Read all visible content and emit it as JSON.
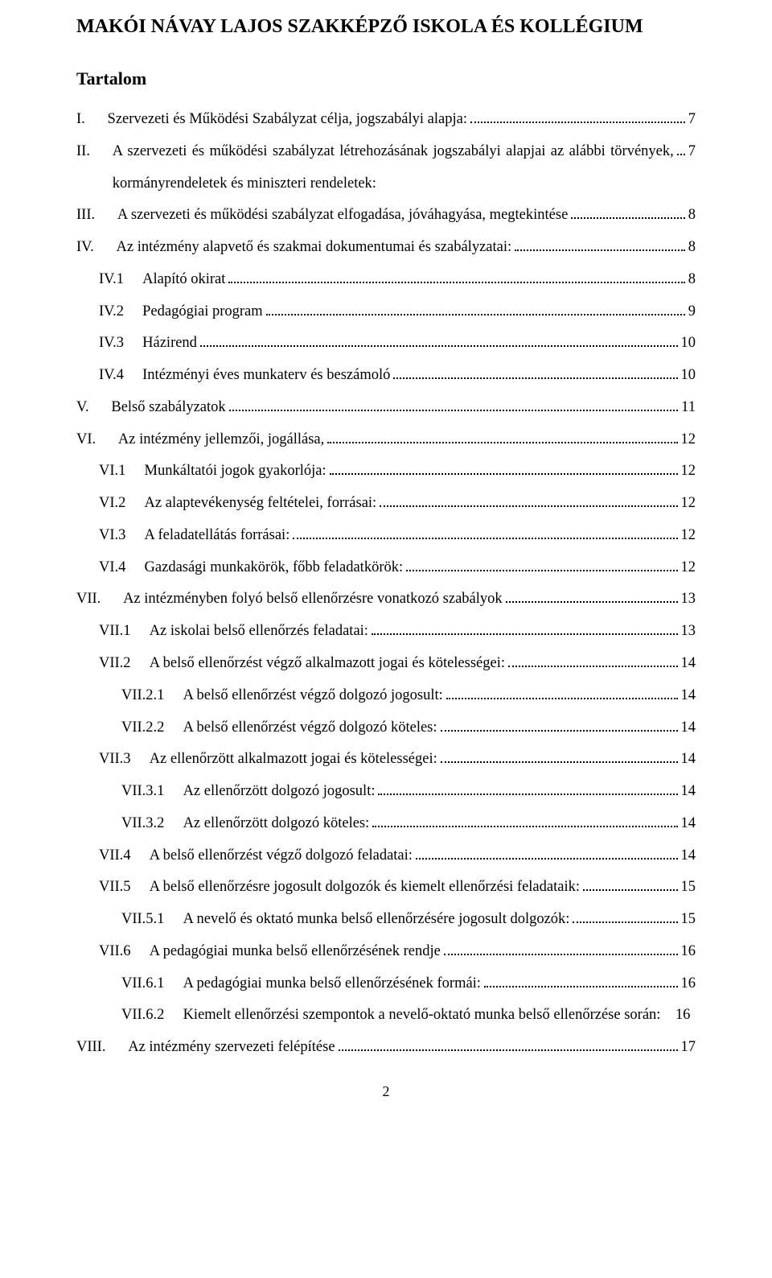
{
  "header": "MAKÓI NÁVAY LAJOS SZAKKÉPZŐ ISKOLA ÉS KOLLÉGIUM",
  "toc_title": "Tartalom",
  "page_number": "2",
  "entries": [
    {
      "indent": 0,
      "num": "I.",
      "title": "Szervezeti és Működési Szabályzat célja, jogszabályi alapja:",
      "page": "7"
    },
    {
      "indent": 0,
      "num": "II.",
      "title": "A szervezeti és működési szabályzat létrehozásának jogszabályi alapjai az alábbi törvények, kormányrendeletek és miniszteri rendeletek:",
      "page": "7"
    },
    {
      "indent": 0,
      "num": "III.",
      "title": "A szervezeti és működési szabályzat elfogadása, jóváhagyása, megtekintése",
      "page": "8"
    },
    {
      "indent": 0,
      "num": "IV.",
      "title": "Az intézmény alapvető és szakmai dokumentumai és szabályzatai:",
      "page": "8"
    },
    {
      "indent": 1,
      "num": "IV.1",
      "title": "Alapító okirat",
      "page": "8"
    },
    {
      "indent": 1,
      "num": "IV.2",
      "title": "Pedagógiai program",
      "page": "9"
    },
    {
      "indent": 1,
      "num": "IV.3",
      "title": "Házirend",
      "page": "10"
    },
    {
      "indent": 1,
      "num": "IV.4",
      "title": "Intézményi éves munkaterv és beszámoló",
      "page": "10"
    },
    {
      "indent": 0,
      "num": "V.",
      "title": "Belső szabályzatok",
      "page": "11"
    },
    {
      "indent": 0,
      "num": "VI.",
      "title": "Az intézmény jellemzői, jogállása,",
      "page": "12"
    },
    {
      "indent": 1,
      "num": "VI.1",
      "title": "Munkáltatói jogok gyakorlója:",
      "page": "12"
    },
    {
      "indent": 1,
      "num": "VI.2",
      "title": "Az alaptevékenység feltételei, forrásai:",
      "page": "12"
    },
    {
      "indent": 1,
      "num": "VI.3",
      "title": "A feladatellátás forrásai:",
      "page": "12"
    },
    {
      "indent": 1,
      "num": "VI.4",
      "title": "Gazdasági munkakörök, főbb feladatkörök:",
      "page": "12"
    },
    {
      "indent": 0,
      "num": "VII.",
      "title": "Az intézményben folyó belső ellenőrzésre vonatkozó szabályok",
      "page": "13"
    },
    {
      "indent": 1,
      "num": "VII.1",
      "title": "Az iskolai belső ellenőrzés feladatai:",
      "page": "13"
    },
    {
      "indent": 1,
      "num": "VII.2",
      "title": "A belső ellenőrzést végző alkalmazott jogai és kötelességei:",
      "page": "14"
    },
    {
      "indent": 2,
      "num": "VII.2.1",
      "title": "A belső ellenőrzést végző dolgozó jogosult:",
      "page": "14"
    },
    {
      "indent": 2,
      "num": "VII.2.2",
      "title": "A belső ellenőrzést végző dolgozó köteles:",
      "page": "14"
    },
    {
      "indent": 1,
      "num": "VII.3",
      "title": "Az ellenőrzött alkalmazott jogai és kötelességei:",
      "page": "14"
    },
    {
      "indent": 2,
      "num": "VII.3.1",
      "title": "Az ellenőrzött dolgozó jogosult:",
      "page": "14"
    },
    {
      "indent": 2,
      "num": "VII.3.2",
      "title": "Az ellenőrzött dolgozó köteles:",
      "page": "14"
    },
    {
      "indent": 1,
      "num": "VII.4",
      "title": "A belső ellenőrzést végző dolgozó feladatai:",
      "page": "14"
    },
    {
      "indent": 1,
      "num": "VII.5",
      "title": "A belső ellenőrzésre jogosult dolgozók és kiemelt ellenőrzési feladataik:",
      "page": "15"
    },
    {
      "indent": 2,
      "num": "VII.5.1",
      "title": "A nevelő és oktató munka belső ellenőrzésére jogosult dolgozók:",
      "page": "15"
    },
    {
      "indent": 1,
      "num": "VII.6",
      "title": "A pedagógiai munka belső ellenőrzésének rendje",
      "page": "16"
    },
    {
      "indent": 2,
      "num": "VII.6.1",
      "title": "A pedagógiai munka belső ellenőrzésének formái:",
      "page": "16"
    },
    {
      "indent": 2,
      "num": "VII.6.2",
      "title": "Kiemelt ellenőrzési szempontok a nevelő-oktató munka belső ellenőrzése során:    16",
      "page": "",
      "nodots": true
    },
    {
      "indent": 0,
      "num": "VIII.",
      "title": "Az intézmény szervezeti felépítése",
      "page": "17"
    }
  ]
}
